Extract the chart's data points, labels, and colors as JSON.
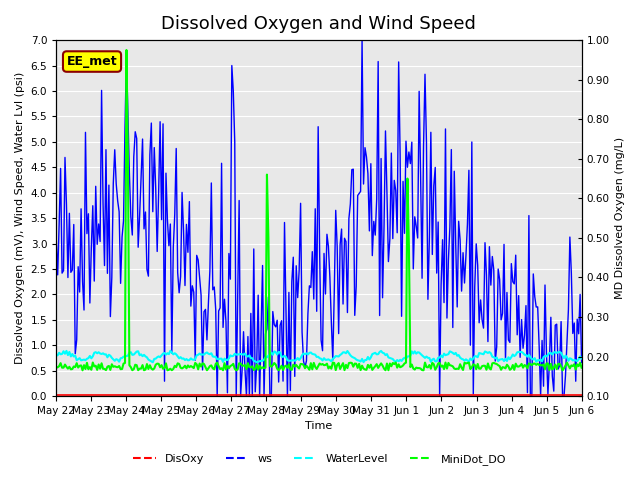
{
  "title": "Dissolved Oxygen and Wind Speed",
  "ylabel_left": "Dissolved Oxygen (mV), Wind Speed, Water Lvl (psi)",
  "ylabel_right": "MD Dissolved Oxygen (mg/L)",
  "xlabel": "Time",
  "ylim_left": [
    0.0,
    7.0
  ],
  "ylim_right": [
    0.1,
    1.0
  ],
  "annotation_text": "EE_met",
  "background_color": "#e8e8e8",
  "title_fontsize": 13,
  "axis_label_fontsize": 8,
  "tick_label_fontsize": 7.5,
  "legend_fontsize": 8,
  "x_tick_labels": [
    "May 22",
    "May 23",
    "May 24",
    "May 25",
    "May 26",
    "May 27",
    "May 28",
    "May 29",
    "May 30",
    "May 31",
    "Jun 1",
    "Jun 2",
    "Jun 3",
    "Jun 4",
    "Jun 5",
    "Jun 6"
  ],
  "colors": {
    "DisOxy": "red",
    "ws": "blue",
    "WaterLevel": "cyan",
    "MiniDot_DO": "lime"
  },
  "linewidths": {
    "DisOxy": 1.2,
    "ws": 1.0,
    "WaterLevel": 1.5,
    "MiniDot_DO": 1.5
  }
}
